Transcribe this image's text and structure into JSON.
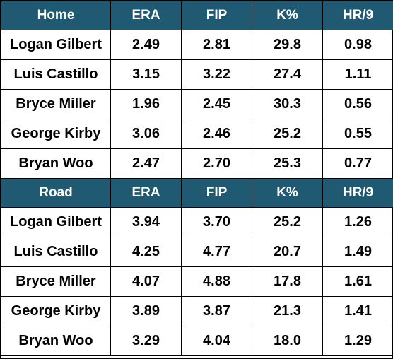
{
  "columns": [
    "ERA",
    "FIP",
    "K%",
    "HR/9"
  ],
  "sections": [
    {
      "label": "Home",
      "rows": [
        {
          "name": "Logan Gilbert",
          "era": "2.49",
          "fip": "2.81",
          "k": "29.8",
          "hr9": "0.98"
        },
        {
          "name": "Luis Castillo",
          "era": "3.15",
          "fip": "3.22",
          "k": "27.4",
          "hr9": "1.11"
        },
        {
          "name": "Bryce Miller",
          "era": "1.96",
          "fip": "2.45",
          "k": "30.3",
          "hr9": "0.56"
        },
        {
          "name": "George Kirby",
          "era": "3.06",
          "fip": "2.46",
          "k": "25.2",
          "hr9": "0.55"
        },
        {
          "name": "Bryan Woo",
          "era": "2.47",
          "fip": "2.70",
          "k": "25.3",
          "hr9": "0.77"
        }
      ]
    },
    {
      "label": "Road",
      "rows": [
        {
          "name": "Logan Gilbert",
          "era": "3.94",
          "fip": "3.70",
          "k": "25.2",
          "hr9": "1.26"
        },
        {
          "name": "Luis Castillo",
          "era": "4.25",
          "fip": "4.77",
          "k": "20.7",
          "hr9": "1.49"
        },
        {
          "name": "Bryce Miller",
          "era": "4.07",
          "fip": "4.88",
          "k": "17.8",
          "hr9": "1.61"
        },
        {
          "name": "George Kirby",
          "era": "3.89",
          "fip": "3.87",
          "k": "21.3",
          "hr9": "1.41"
        },
        {
          "name": "Bryan Woo",
          "era": "3.29",
          "fip": "4.04",
          "k": "18.0",
          "hr9": "1.29"
        }
      ]
    }
  ],
  "colors": {
    "header_bg": "#1f5a72",
    "header_text": "#ffffff",
    "border": "#000000"
  }
}
